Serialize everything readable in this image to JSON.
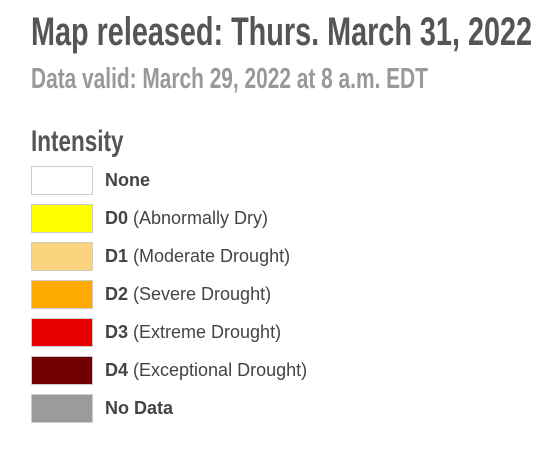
{
  "header": {
    "title": "Map released: Thurs. March 31, 2022",
    "subtitle": "Data valid: March 29, 2022 at 8 a.m. EDT"
  },
  "legend": {
    "title": "Intensity",
    "items": [
      {
        "code": "None",
        "color": "#ffffff"
      },
      {
        "code": "D0",
        "description": "(Abnormally Dry)",
        "color": "#ffff00"
      },
      {
        "code": "D1",
        "description": "(Moderate Drought)",
        "color": "#fcd37f"
      },
      {
        "code": "D2",
        "description": "(Severe Drought)",
        "color": "#ffaa00"
      },
      {
        "code": "D3",
        "description": "(Extreme Drought)",
        "color": "#e60000"
      },
      {
        "code": "D4",
        "description": "(Exceptional Drought)",
        "color": "#730000"
      },
      {
        "code": "No Data",
        "color": "#9b9b9b"
      }
    ]
  }
}
